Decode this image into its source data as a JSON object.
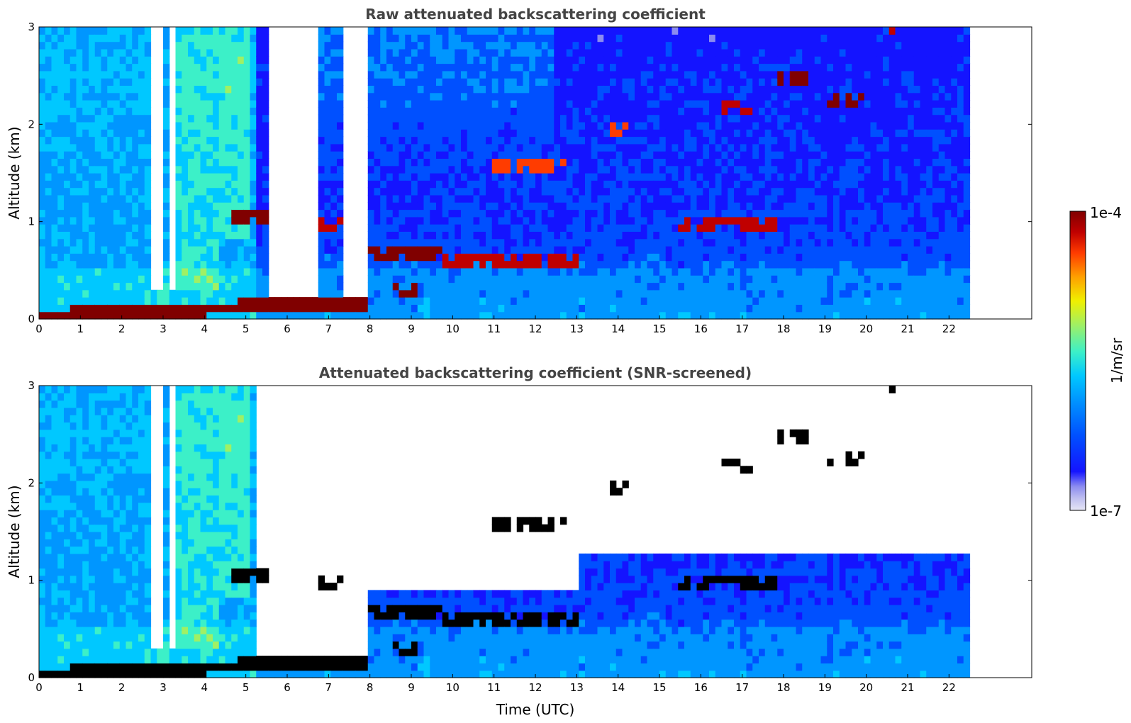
{
  "chart_data": [
    {
      "type": "heatmap",
      "title": "Raw attenuated backscattering coefficient",
      "ylabel": "Altitude (km)",
      "xlabel": "",
      "xlim": [
        0,
        24
      ],
      "ylim": [
        0,
        3
      ],
      "xticks": [
        0,
        1,
        2,
        3,
        4,
        5,
        6,
        7,
        8,
        9,
        10,
        11,
        12,
        13,
        14,
        15,
        16,
        17,
        18,
        19,
        20,
        21,
        22
      ],
      "yticks": [
        0,
        1,
        2
      ],
      "data_end_time": 22.5,
      "layers": [
        {
          "kind": "surface",
          "t0": 0,
          "t1": 8.0,
          "alt_start": 0.03,
          "alt_end": 0.18,
          "level": 1.0
        },
        {
          "kind": "cloud",
          "t0": 4.6,
          "t1": 5.6,
          "alt": 1.05,
          "level": 0.95
        },
        {
          "kind": "cloud",
          "t0": 6.7,
          "t1": 7.5,
          "alt": 0.95,
          "level": 0.9
        },
        {
          "kind": "cloud",
          "t0": 7.9,
          "t1": 9.8,
          "alt": 0.7,
          "level": 0.95
        },
        {
          "kind": "cloud",
          "t0": 8.5,
          "t1": 9.2,
          "alt": 0.28,
          "level": 0.95
        },
        {
          "kind": "cloud",
          "t0": 9.8,
          "t1": 13.0,
          "alt": 0.6,
          "level": 0.9
        },
        {
          "kind": "cloud",
          "t0": 11.0,
          "t1": 12.8,
          "alt": 1.6,
          "level": 0.85
        },
        {
          "kind": "cloud",
          "t0": 13.8,
          "t1": 14.3,
          "alt": 1.95,
          "level": 0.85
        },
        {
          "kind": "cloud",
          "t0": 15.5,
          "t1": 17.9,
          "alt": 0.95,
          "level": 0.9
        },
        {
          "kind": "cloud",
          "t0": 16.5,
          "t1": 17.2,
          "alt": 2.15,
          "level": 0.9
        },
        {
          "kind": "cloud",
          "t0": 17.8,
          "t1": 18.6,
          "alt": 2.45,
          "level": 0.95
        },
        {
          "kind": "cloud",
          "t0": 19.1,
          "t1": 20.0,
          "alt": 2.25,
          "level": 0.95
        },
        {
          "kind": "cloud",
          "t0": 20.6,
          "t1": 20.9,
          "alt": 2.9,
          "level": 0.9
        }
      ]
    },
    {
      "type": "heatmap",
      "title": "Attenuated backscattering coefficient (SNR-screened)",
      "ylabel": "Altitude (km)",
      "xlabel": "Time (UTC)",
      "xlim": [
        0,
        24
      ],
      "ylim": [
        0,
        3
      ],
      "xticks": [
        0,
        1,
        2,
        3,
        4,
        5,
        6,
        7,
        8,
        9,
        10,
        11,
        12,
        13,
        14,
        15,
        16,
        17,
        18,
        19,
        20,
        21,
        22
      ],
      "yticks": [
        0,
        1,
        2
      ],
      "data_end_time": 22.5,
      "screened_missing_color": "#000000"
    }
  ],
  "colorbar": {
    "label": "1/m/sr",
    "max_label": "1e-4",
    "min_label": "1e-7",
    "scale": "log",
    "colors": [
      "#e6e6f5",
      "#bfbff0",
      "#8c8cf0",
      "#1414ff",
      "#0050ff",
      "#0096ff",
      "#00c8ff",
      "#3cf0c8",
      "#a0f064",
      "#f0f000",
      "#ffa000",
      "#ff3c00",
      "#c00000",
      "#800000"
    ]
  }
}
